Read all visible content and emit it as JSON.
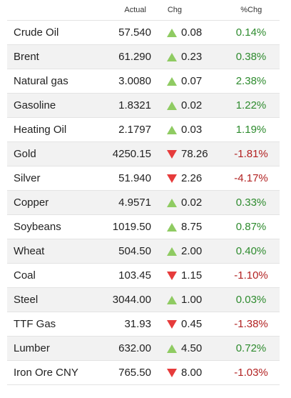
{
  "header": {
    "name": "",
    "actual": "Actual",
    "chg": "Chg",
    "pct": "%Chg"
  },
  "rows": [
    {
      "name": "Crude Oil",
      "actual": "57.540",
      "chg": "0.08",
      "pct": "0.14%",
      "dir": "up"
    },
    {
      "name": "Brent",
      "actual": "61.290",
      "chg": "0.23",
      "pct": "0.38%",
      "dir": "up"
    },
    {
      "name": "Natural gas",
      "actual": "3.0080",
      "chg": "0.07",
      "pct": "2.38%",
      "dir": "up"
    },
    {
      "name": "Gasoline",
      "actual": "1.8321",
      "chg": "0.02",
      "pct": "1.22%",
      "dir": "up"
    },
    {
      "name": "Heating Oil",
      "actual": "2.1797",
      "chg": "0.03",
      "pct": "1.19%",
      "dir": "up"
    },
    {
      "name": "Gold",
      "actual": "4250.15",
      "chg": "78.26",
      "pct": "-1.81%",
      "dir": "down"
    },
    {
      "name": "Silver",
      "actual": "51.940",
      "chg": "2.26",
      "pct": "-4.17%",
      "dir": "down"
    },
    {
      "name": "Copper",
      "actual": "4.9571",
      "chg": "0.02",
      "pct": "0.33%",
      "dir": "up"
    },
    {
      "name": "Soybeans",
      "actual": "1019.50",
      "chg": "8.75",
      "pct": "0.87%",
      "dir": "up"
    },
    {
      "name": "Wheat",
      "actual": "504.50",
      "chg": "2.00",
      "pct": "0.40%",
      "dir": "up"
    },
    {
      "name": "Coal",
      "actual": "103.45",
      "chg": "1.15",
      "pct": "-1.10%",
      "dir": "down"
    },
    {
      "name": "Steel",
      "actual": "3044.00",
      "chg": "1.00",
      "pct": "0.03%",
      "dir": "up"
    },
    {
      "name": "TTF Gas",
      "actual": "31.93",
      "chg": "0.45",
      "pct": "-1.38%",
      "dir": "down"
    },
    {
      "name": "Lumber",
      "actual": "632.00",
      "chg": "4.50",
      "pct": "0.72%",
      "dir": "up"
    },
    {
      "name": "Iron Ore CNY",
      "actual": "765.50",
      "chg": "8.00",
      "pct": "-1.03%",
      "dir": "down"
    }
  ],
  "colors": {
    "up_arrow": "#8fcb62",
    "down_arrow": "#e63b3b",
    "positive_text": "#2e8b2e",
    "negative_text": "#b22222",
    "alt_row": "#f2f2f2"
  },
  "icons": {
    "up": "triangle-up-icon",
    "down": "triangle-down-icon"
  }
}
